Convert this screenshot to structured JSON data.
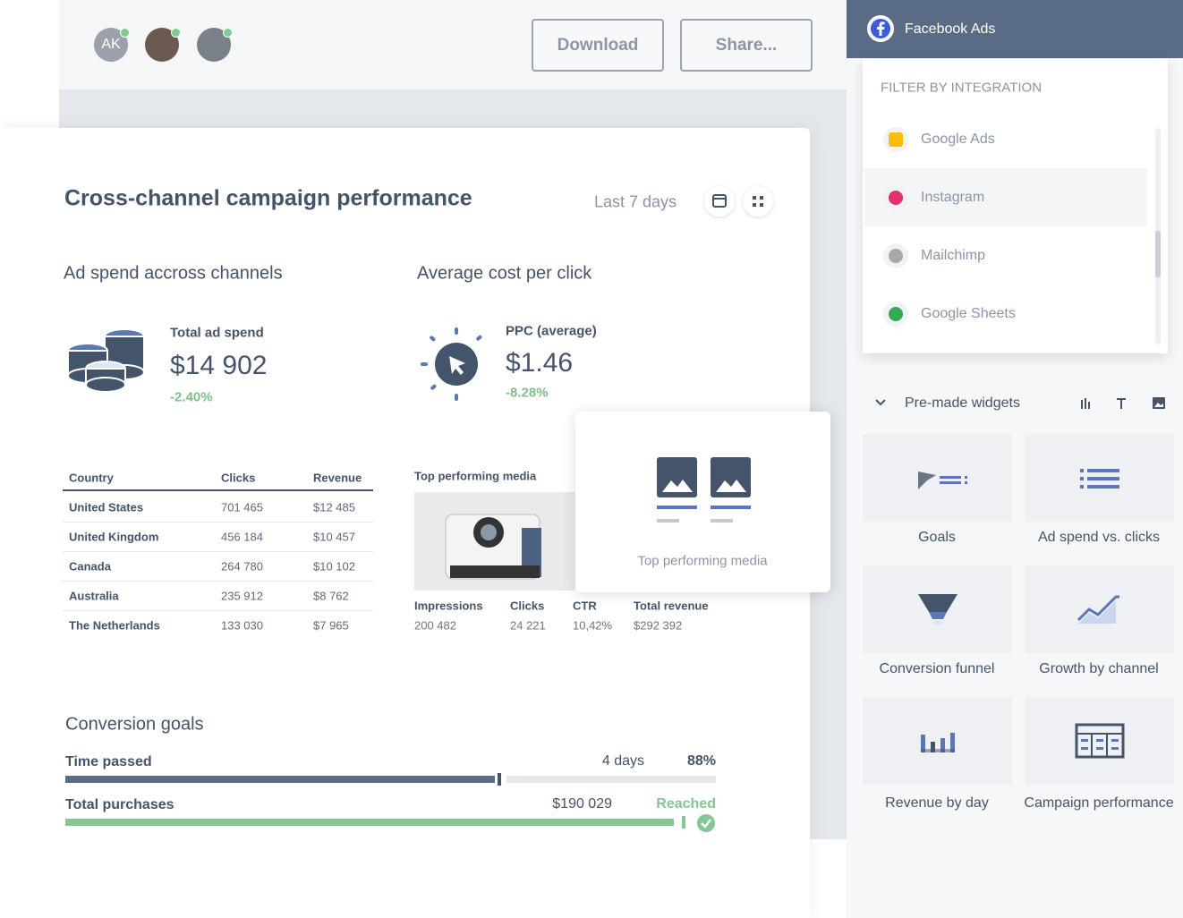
{
  "header": {
    "avatar_initials": "AK",
    "buttons": [
      "Download",
      "Share..."
    ]
  },
  "report": {
    "title": "Cross-channel campaign performance",
    "date_range": "Last 7 days",
    "ad_spend": {
      "title": "Ad spend accross channels",
      "label": "Total ad spend",
      "value": "$14 902",
      "change": "-2.40%"
    },
    "cpc": {
      "title": "Average cost per click",
      "label": "PPC (average)",
      "value": "$1.46",
      "change": "-8.28%"
    },
    "country_table": {
      "columns": [
        "Country",
        "Clicks",
        "Revenue"
      ],
      "rows": [
        [
          "United States",
          "701 465",
          "$12 485"
        ],
        [
          "United Kingdom",
          "456 184",
          "$10 457"
        ],
        [
          "Canada",
          "264 780",
          "$10 102"
        ],
        [
          "Australia",
          "235 912",
          "$8 762"
        ],
        [
          "The Netherlands",
          "133 030",
          "$7 965"
        ]
      ]
    },
    "media": {
      "title": "Top performing media",
      "columns": [
        "Impressions",
        "Clicks",
        "CTR",
        "Total revenue"
      ],
      "values": [
        "200 482",
        "24 221",
        "10,42%",
        "$292 392"
      ]
    },
    "goals": {
      "title": "Conversion goals",
      "items": [
        {
          "label": "Time passed",
          "value": "4 days",
          "status": "88%"
        },
        {
          "label": "Total purchases",
          "value": "$190 029",
          "status": "Reached"
        }
      ]
    }
  },
  "drag_card": {
    "label": "Top performing media"
  },
  "sidebar": {
    "integration": "Facebook Ads",
    "filter_title": "FILTER BY INTEGRATION",
    "integrations": [
      "Google Ads",
      "Instagram",
      "Mailchimp",
      "Google Sheets"
    ],
    "widgets_title": "Pre-made widgets",
    "widgets": [
      "Goals",
      "Ad spend vs. clicks",
      "Conversion funnel",
      "Growth by channel",
      "Revenue by day",
      "Campaign performance"
    ]
  }
}
